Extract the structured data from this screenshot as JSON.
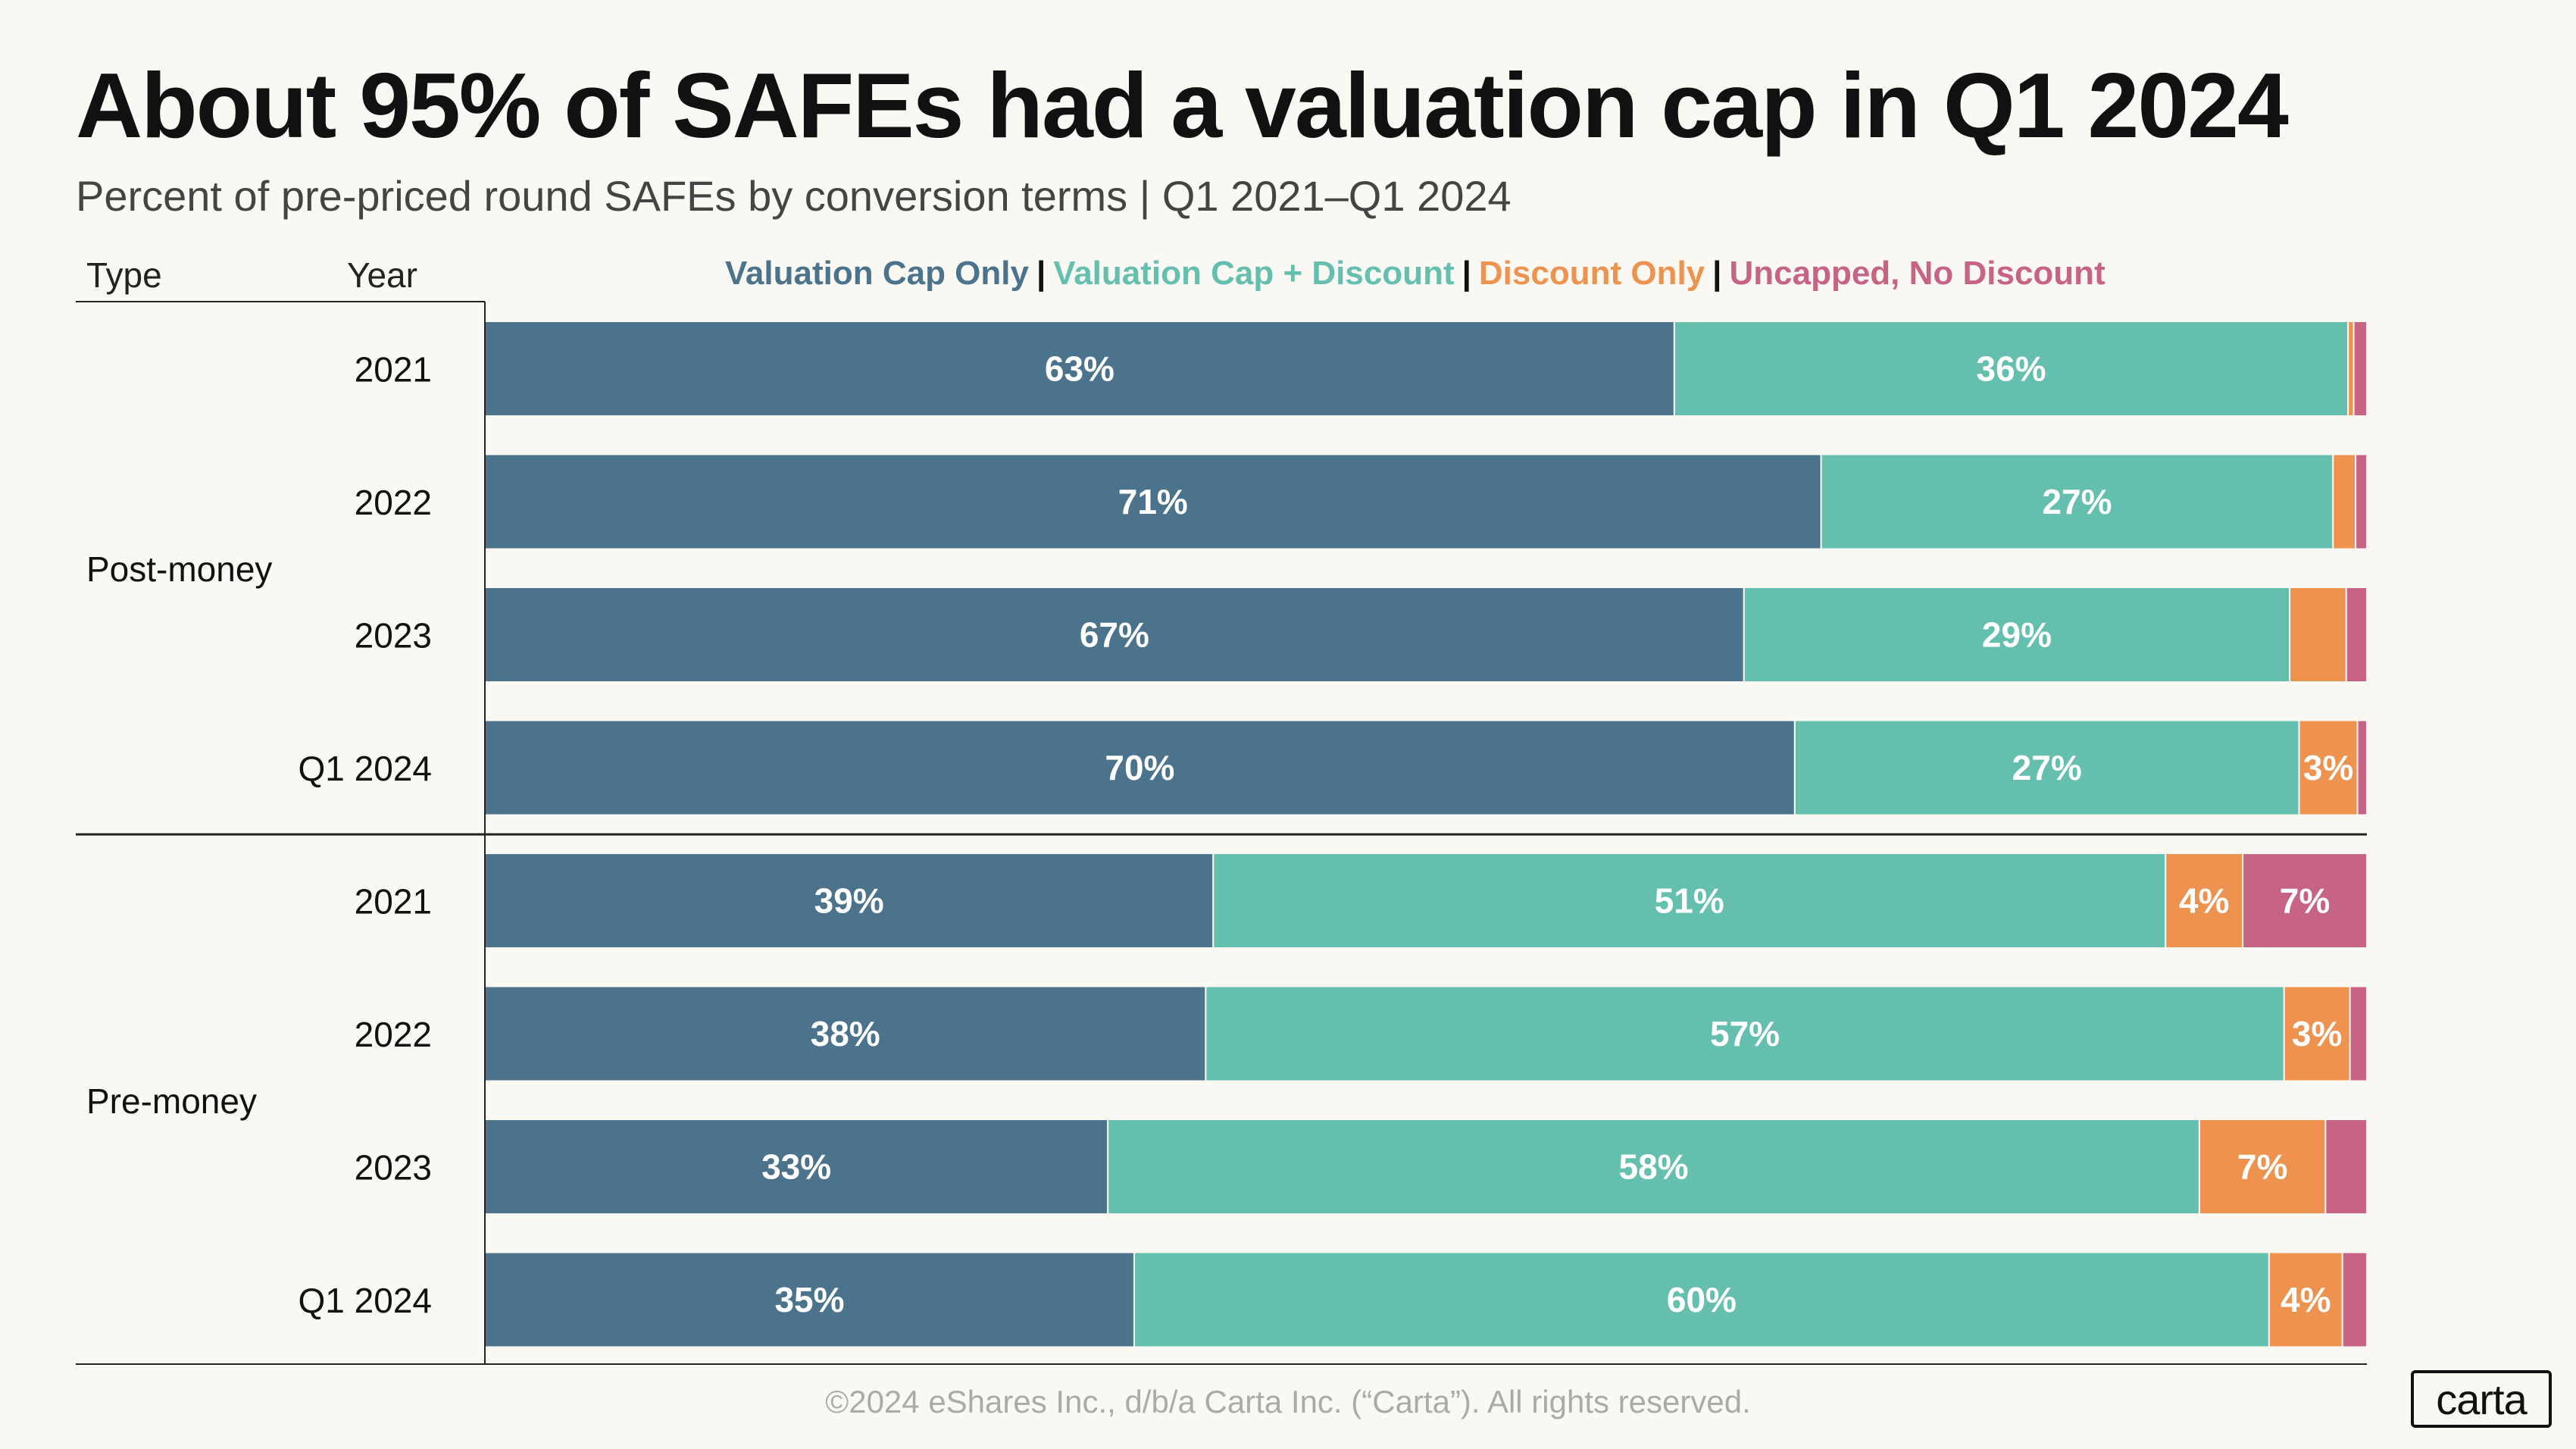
{
  "chart_data": {
    "type": "bar",
    "orientation": "horizontal",
    "stacked": true,
    "normalized": true,
    "title": "About 95% of SAFEs had a valuation cap in Q1 2024",
    "subtitle": "Percent of pre-priced round SAFEs by conversion terms | Q1 2021–Q1 2024",
    "column_headers": {
      "type": "Type",
      "year": "Year"
    },
    "legend_position": "top",
    "series": [
      {
        "name": "Valuation Cap Only",
        "color": "#4c738c"
      },
      {
        "name": "Valuation Cap + Discount",
        "color": "#64bfaf"
      },
      {
        "name": "Discount Only",
        "color": "#ee934f"
      },
      {
        "name": "Uncapped, No Discount",
        "color": "#c76385"
      }
    ],
    "groups": [
      {
        "type": "Post-money",
        "rows": [
          {
            "year": "2021",
            "values": [
              63.2,
              35.8,
              0.3,
              0.7
            ],
            "labels": [
              "63%",
              "36%",
              "",
              ""
            ]
          },
          {
            "year": "2022",
            "values": [
              71.0,
              27.2,
              1.2,
              0.6
            ],
            "labels": [
              "71%",
              "27%",
              "",
              ""
            ]
          },
          {
            "year": "2023",
            "values": [
              66.9,
              29.0,
              3.0,
              1.1
            ],
            "labels": [
              "67%",
              "29%",
              "",
              ""
            ]
          },
          {
            "year": "Q1 2024",
            "values": [
              69.6,
              26.8,
              3.1,
              0.5
            ],
            "labels": [
              "70%",
              "27%",
              "3%",
              ""
            ]
          }
        ]
      },
      {
        "type": "Pre-money",
        "rows": [
          {
            "year": "2021",
            "values": [
              38.7,
              50.6,
              4.1,
              6.6
            ],
            "labels": [
              "39%",
              "51%",
              "4%",
              "7%"
            ]
          },
          {
            "year": "2022",
            "values": [
              38.3,
              57.3,
              3.5,
              0.9
            ],
            "labels": [
              "38%",
              "57%",
              "3%",
              ""
            ]
          },
          {
            "year": "2023",
            "values": [
              33.1,
              58.0,
              6.7,
              2.2
            ],
            "labels": [
              "33%",
              "58%",
              "7%",
              ""
            ]
          },
          {
            "year": "Q1 2024",
            "values": [
              34.5,
              60.3,
              3.9,
              1.3
            ],
            "labels": [
              "35%",
              "60%",
              "4%",
              ""
            ]
          }
        ]
      }
    ]
  },
  "footer": {
    "copyright": "©2024 eShares Inc., d/b/a Carta Inc. (“Carta”). All rights reserved."
  },
  "logo": {
    "text": "carta"
  }
}
